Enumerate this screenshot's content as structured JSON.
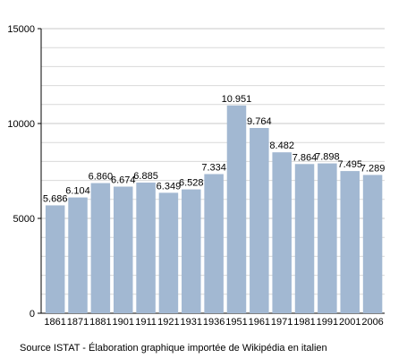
{
  "chart_data": {
    "type": "bar",
    "categories": [
      "1861",
      "1871",
      "1881",
      "1901",
      "1911",
      "1921",
      "1931",
      "1936",
      "1951",
      "1961",
      "1971",
      "1981",
      "1991",
      "2001",
      "2006"
    ],
    "values": [
      5686,
      6104,
      6860,
      6674,
      6885,
      6349,
      6528,
      7334,
      10951,
      9764,
      8482,
      7864,
      7898,
      7495,
      7289
    ],
    "value_labels": [
      "5.686",
      "6.104",
      "6.860",
      "6.674",
      "6.885",
      "6.349",
      "6.528",
      "7.334",
      "10.951",
      "9.764",
      "8.482",
      "7.864",
      "7.898",
      "7.495",
      "7.289"
    ],
    "ylim": [
      0,
      15000
    ],
    "yticks": [
      0,
      5000,
      10000,
      15000
    ],
    "ytick_labels": [
      "0",
      "5000",
      "10000",
      "15000"
    ],
    "grid": true,
    "bar_color": "#a2b8d2",
    "grid_color": "#d9d9d9",
    "note": "Source ISTAT - Élaboration graphique importée de Wikipédia en italien"
  }
}
